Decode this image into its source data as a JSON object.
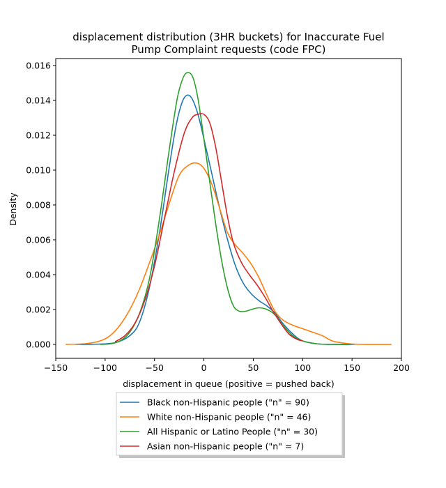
{
  "chart_data": {
    "type": "line",
    "title_line1": "displacement distribution (3HR buckets) for Inaccurate Fuel",
    "title_line2": "Pump Complaint requests (code FPC)",
    "xlabel": "displacement in queue (positive = pushed back)",
    "ylabel": "Density",
    "xlim": [
      -150,
      200
    ],
    "ylim": [
      -0.0008,
      0.0164
    ],
    "x_ticks": [
      -150,
      -100,
      -50,
      0,
      50,
      100,
      150,
      200
    ],
    "x_tick_labels": [
      "−150",
      "−100",
      "−50",
      "0",
      "50",
      "100",
      "150",
      "200"
    ],
    "y_ticks": [
      0.0,
      0.002,
      0.004,
      0.006,
      0.008,
      0.01,
      0.012,
      0.014,
      0.016
    ],
    "y_tick_labels": [
      "0.000",
      "0.002",
      "0.004",
      "0.006",
      "0.008",
      "0.010",
      "0.012",
      "0.014",
      "0.016"
    ],
    "grid": false,
    "legend_placement": "below",
    "series": [
      {
        "name": "Black non-Hispanic people (\"n\" = 90)",
        "color": "#1f77b4",
        "points": [
          [
            -130,
            0.0
          ],
          [
            -110,
            1e-05
          ],
          [
            -90,
            0.0001
          ],
          [
            -75,
            0.0005
          ],
          [
            -65,
            0.0013
          ],
          [
            -55,
            0.0033
          ],
          [
            -45,
            0.0064
          ],
          [
            -35,
            0.0102
          ],
          [
            -28,
            0.0126
          ],
          [
            -22,
            0.0139
          ],
          [
            -17,
            0.0143
          ],
          [
            -12,
            0.0141
          ],
          [
            -6,
            0.0132
          ],
          [
            0,
            0.0118
          ],
          [
            8,
            0.0098
          ],
          [
            16,
            0.0078
          ],
          [
            24,
            0.006
          ],
          [
            32,
            0.0045
          ],
          [
            40,
            0.0035
          ],
          [
            48,
            0.0029
          ],
          [
            56,
            0.0025
          ],
          [
            64,
            0.0022
          ],
          [
            72,
            0.0018
          ],
          [
            80,
            0.0012
          ],
          [
            90,
            0.0006
          ],
          [
            100,
            0.0002
          ],
          [
            115,
            3e-05
          ],
          [
            130,
            0.0
          ],
          [
            153,
            0.0
          ]
        ]
      },
      {
        "name": "White non-Hispanic people (\"n\" = 46)",
        "color": "#ff7f0e",
        "points": [
          [
            -140,
            0.0
          ],
          [
            -120,
            4e-05
          ],
          [
            -105,
            0.0002
          ],
          [
            -95,
            0.0005
          ],
          [
            -85,
            0.0011
          ],
          [
            -75,
            0.002
          ],
          [
            -65,
            0.0032
          ],
          [
            -55,
            0.0047
          ],
          [
            -45,
            0.0063
          ],
          [
            -35,
            0.0081
          ],
          [
            -25,
            0.0097
          ],
          [
            -15,
            0.0103
          ],
          [
            -7,
            0.0104
          ],
          [
            0,
            0.0101
          ],
          [
            8,
            0.0092
          ],
          [
            16,
            0.0078
          ],
          [
            24,
            0.0064
          ],
          [
            32,
            0.0057
          ],
          [
            40,
            0.0052
          ],
          [
            48,
            0.0046
          ],
          [
            56,
            0.0038
          ],
          [
            64,
            0.0028
          ],
          [
            72,
            0.0019
          ],
          [
            80,
            0.0014
          ],
          [
            90,
            0.0011
          ],
          [
            100,
            0.0009
          ],
          [
            110,
            0.0007
          ],
          [
            120,
            0.0005
          ],
          [
            130,
            0.0002
          ],
          [
            145,
            5e-05
          ],
          [
            160,
            0.0
          ],
          [
            190,
            0.0
          ]
        ]
      },
      {
        "name": "All Hispanic or Latino People (\"n\" = 30)",
        "color": "#2ca02c",
        "points": [
          [
            -105,
            0.0
          ],
          [
            -95,
            3e-05
          ],
          [
            -85,
            0.0002
          ],
          [
            -75,
            0.0007
          ],
          [
            -65,
            0.0018
          ],
          [
            -55,
            0.0038
          ],
          [
            -45,
            0.0072
          ],
          [
            -35,
            0.0112
          ],
          [
            -27,
            0.0141
          ],
          [
            -21,
            0.0153
          ],
          [
            -16,
            0.0156
          ],
          [
            -11,
            0.0153
          ],
          [
            -6,
            0.0141
          ],
          [
            0,
            0.0118
          ],
          [
            6,
            0.0093
          ],
          [
            12,
            0.0069
          ],
          [
            18,
            0.0048
          ],
          [
            24,
            0.0032
          ],
          [
            30,
            0.0022
          ],
          [
            36,
            0.0019
          ],
          [
            42,
            0.0019
          ],
          [
            48,
            0.002
          ],
          [
            56,
            0.0021
          ],
          [
            64,
            0.002
          ],
          [
            72,
            0.0017
          ],
          [
            80,
            0.0011
          ],
          [
            90,
            0.0005
          ],
          [
            100,
            0.0002
          ],
          [
            115,
            3e-05
          ],
          [
            130,
            0.0
          ],
          [
            148,
            0.0
          ]
        ]
      },
      {
        "name": "Asian non-Hispanic people (\"n\" = 7)",
        "color": "#d62728",
        "points": [
          [
            -90,
            0.00015
          ],
          [
            -80,
            0.0005
          ],
          [
            -70,
            0.0012
          ],
          [
            -60,
            0.0025
          ],
          [
            -50,
            0.0045
          ],
          [
            -40,
            0.0072
          ],
          [
            -30,
            0.0099
          ],
          [
            -20,
            0.0121
          ],
          [
            -12,
            0.013
          ],
          [
            -6,
            0.0132
          ],
          [
            0,
            0.0132
          ],
          [
            6,
            0.0127
          ],
          [
            12,
            0.0113
          ],
          [
            18,
            0.0093
          ],
          [
            24,
            0.0073
          ],
          [
            30,
            0.0058
          ],
          [
            38,
            0.0047
          ],
          [
            46,
            0.004
          ],
          [
            54,
            0.0034
          ],
          [
            62,
            0.0027
          ],
          [
            70,
            0.0019
          ],
          [
            78,
            0.0012
          ],
          [
            86,
            0.0006
          ],
          [
            94,
            0.0003
          ],
          [
            100,
            0.0002
          ]
        ]
      }
    ]
  }
}
